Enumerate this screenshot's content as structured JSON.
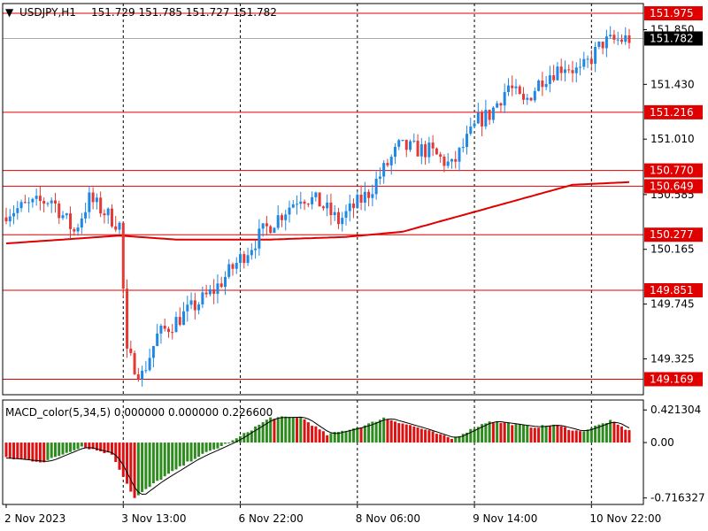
{
  "header": {
    "symbol": "USDJPY,H1",
    "ohlc": "151.729 151.785 151.727 151.782"
  },
  "indicator": {
    "label": "MACD_color(5,34,5) 0.000000 0.000000 0.226600"
  },
  "colors": {
    "bull": "#1e88e5",
    "bear": "#e53935",
    "ma": "#e00000",
    "level": "#e00000",
    "macd_pos": "#2e8b1e",
    "macd_neg": "#dd1111",
    "signal": "#000000",
    "grid": "#000000"
  },
  "chart_data": {
    "type": "candlestick",
    "price_axis": {
      "ylim": [
        149.05,
        152.05
      ],
      "ticks": [
        "151.850",
        "151.430",
        "151.010",
        "150.585",
        "150.165",
        "149.745",
        "149.325"
      ],
      "tick_values": [
        151.85,
        151.43,
        151.01,
        150.585,
        150.165,
        149.745,
        149.325
      ]
    },
    "levels": [
      {
        "label": "151.975",
        "value": 151.975
      },
      {
        "label": "151.216",
        "value": 151.216
      },
      {
        "label": "150.770",
        "value": 150.77
      },
      {
        "label": "150.649",
        "value": 150.649
      },
      {
        "label": "150.277",
        "value": 150.277
      },
      {
        "label": "149.851",
        "value": 149.851
      },
      {
        "label": "149.169",
        "value": 149.169
      }
    ],
    "current_price": {
      "label": "151.782",
      "value": 151.782
    },
    "time_labels": [
      "2 Nov 2023",
      "3 Nov 13:00",
      "6 Nov 22:00",
      "8 Nov 06:00",
      "9 Nov 14:00",
      "10 Nov 22:00"
    ],
    "time_label_bar_index": [
      0,
      31,
      62,
      93,
      124,
      155
    ],
    "close_anchor_values": [
      150.45,
      150.55,
      150.3,
      150.55,
      150.35,
      149.35,
      149.2,
      149.5,
      149.85,
      150.3,
      150.58,
      150.52,
      150.38,
      150.6,
      150.95,
      150.92,
      150.8,
      151.15,
      151.2,
      151.42,
      151.28,
      151.48,
      151.58,
      151.52,
      151.75,
      151.782
    ],
    "close_anchor_bar_index": [
      0,
      12,
      18,
      22,
      30,
      32,
      36,
      40,
      55,
      68,
      78,
      83,
      88,
      96,
      104,
      112,
      118,
      125,
      128,
      133,
      137,
      142,
      148,
      152,
      158,
      165
    ],
    "moving_average": {
      "anchor_values": [
        150.21,
        150.27,
        150.24,
        150.24,
        150.26,
        150.3,
        150.42,
        150.58,
        150.66,
        150.68
      ],
      "anchor_bar_index": [
        0,
        30,
        45,
        70,
        90,
        105,
        120,
        140,
        150,
        165
      ]
    },
    "macd": {
      "axis_ticks": [
        "0.421304",
        "0.00",
        "-0.716327"
      ],
      "tick_values": [
        0.421304,
        0.0,
        -0.716327
      ],
      "ylim": [
        -0.8,
        0.55
      ],
      "anchor_values": [
        -0.2,
        -0.25,
        -0.05,
        -0.15,
        -0.72,
        -0.5,
        -0.2,
        0.02,
        0.32,
        0.33,
        0.1,
        0.22,
        0.32,
        0.18,
        0.05,
        0.28,
        0.2,
        0.23,
        0.14,
        0.28,
        0.15
      ],
      "anchor_bar_index": [
        0,
        10,
        20,
        28,
        34,
        40,
        50,
        60,
        70,
        78,
        85,
        95,
        100,
        110,
        118,
        128,
        140,
        145,
        152,
        160,
        165
      ]
    },
    "bar_count": 166
  }
}
